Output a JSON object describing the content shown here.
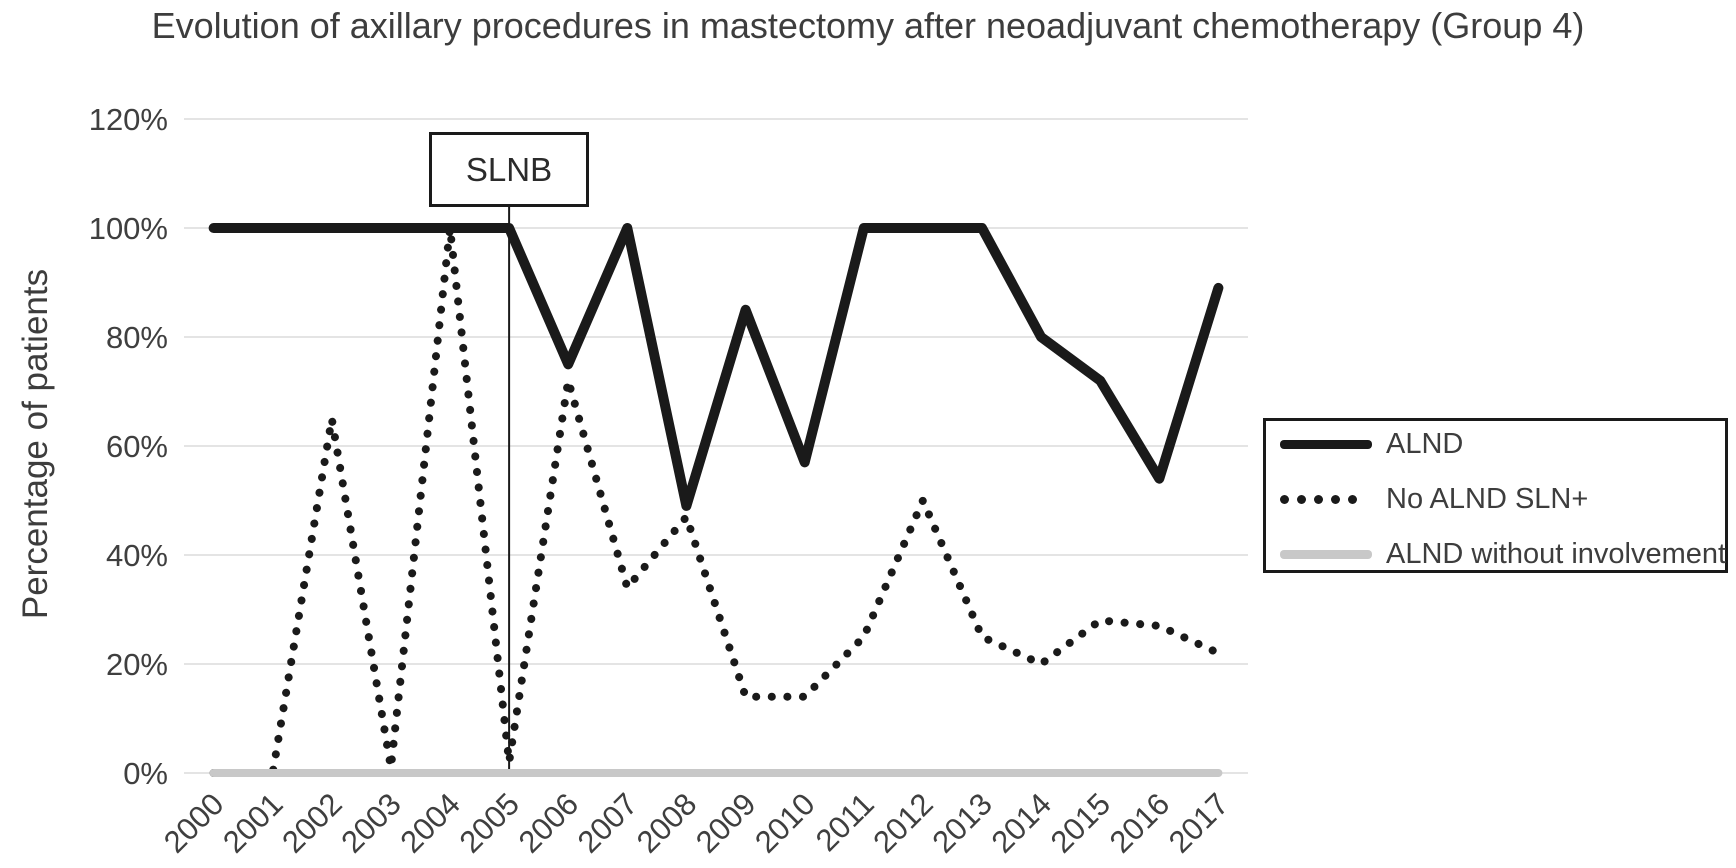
{
  "title": "Evolution of axillary procedures in mastectomy after neoadjuvant chemotherapy (Group 4)",
  "annotation": {
    "label": "SLNB",
    "year": "2005"
  },
  "colors": {
    "line_black": "#1a1a1a",
    "line_gray": "#c8c8c8",
    "grid": "#e4e4e4",
    "text": "#3f3f3f",
    "background": "#ffffff"
  },
  "chart_data": {
    "type": "line",
    "title": "Evolution of axillary procedures in mastectomy after neoadjuvant chemotherapy (Group 4)",
    "xlabel": "",
    "ylabel": "Percentage of patients",
    "x_labels": [
      "2000",
      "2001",
      "2002",
      "2003",
      "2004",
      "2005",
      "2006",
      "2007",
      "2008",
      "2009",
      "2010",
      "2011",
      "2012",
      "2013",
      "2014",
      "2015",
      "2016",
      "2017"
    ],
    "y_tick_labels": [
      "0%",
      "20%",
      "40%",
      "60%",
      "80%",
      "100%",
      "120%"
    ],
    "y_ticks": [
      0,
      20,
      40,
      60,
      80,
      100,
      120
    ],
    "ylim": [
      0,
      120
    ],
    "grid": true,
    "legend_position": "right",
    "series": [
      {
        "name": "ALND",
        "style": "solid",
        "color": "#1a1a1a",
        "values": [
          100,
          100,
          100,
          100,
          100,
          100,
          75,
          100,
          49,
          85,
          57,
          100,
          100,
          100,
          80,
          72,
          54,
          89
        ]
      },
      {
        "name": "No ALND SLN+",
        "style": "dotted",
        "color": "#1a1a1a",
        "values": [
          0,
          0,
          65,
          1,
          100,
          2,
          72,
          34,
          47,
          14,
          14,
          25,
          50,
          25,
          20,
          28,
          27,
          22
        ]
      },
      {
        "name": "ALND without involvement",
        "style": "gray",
        "color": "#c8c8c8",
        "values": [
          0,
          0,
          0,
          0,
          0,
          0,
          0,
          0,
          0,
          0,
          0,
          0,
          0,
          0,
          0,
          0,
          0,
          0
        ]
      }
    ]
  }
}
